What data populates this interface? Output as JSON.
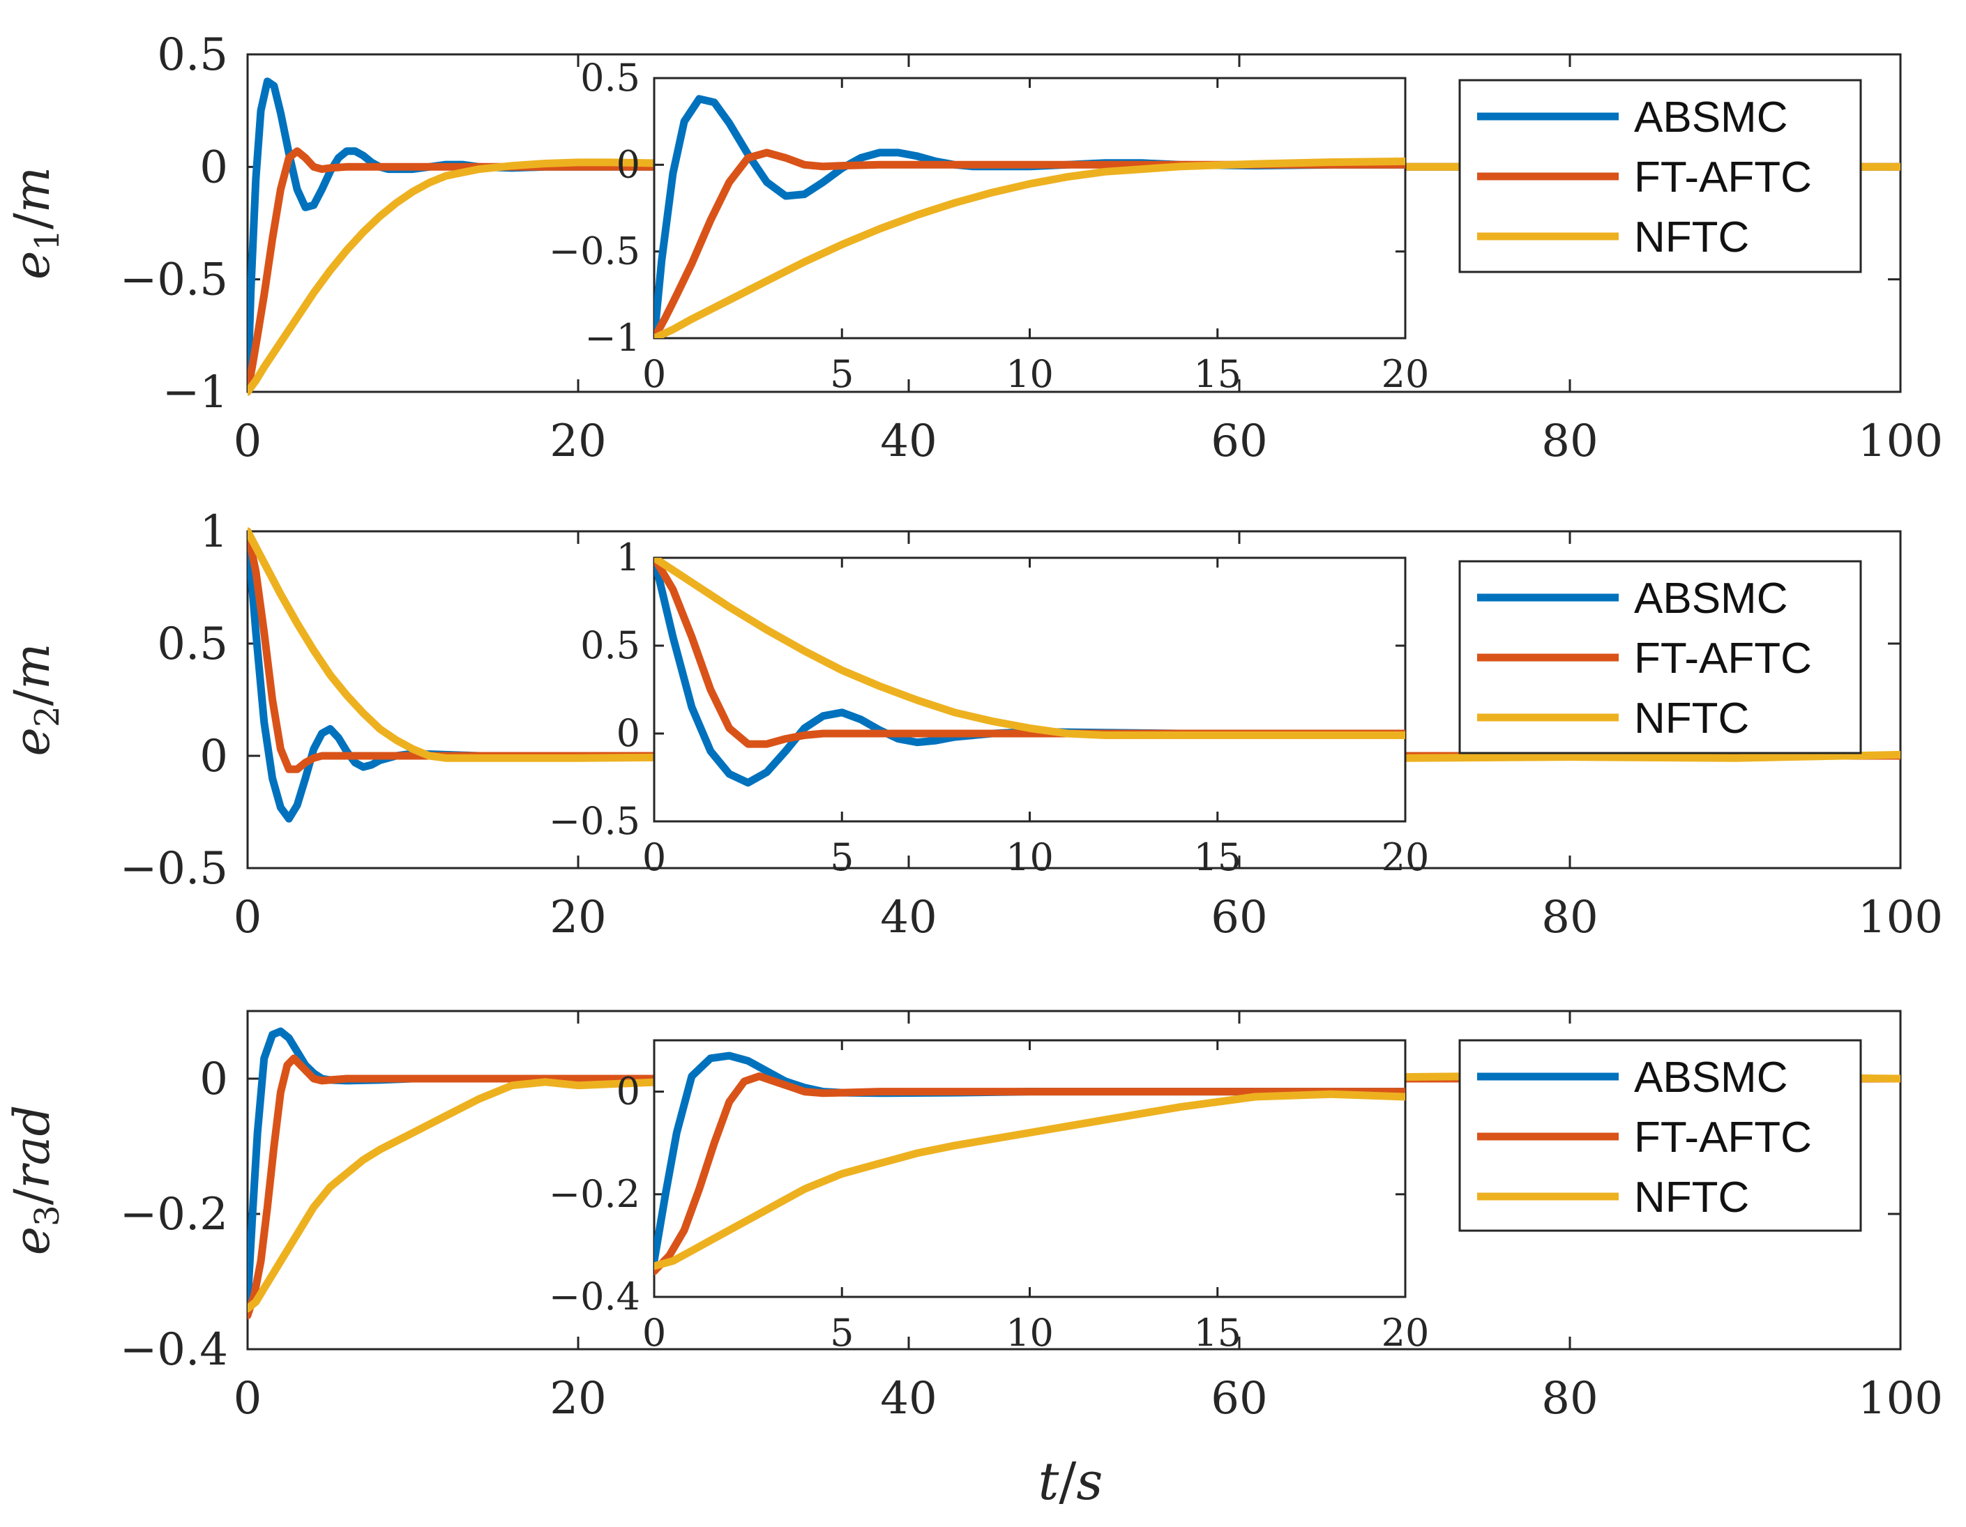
{
  "chart_data": {
    "type": "line",
    "xlabel_var": "t",
    "xlabel_unit": "s",
    "colors": {
      "ABSMC": "#0072BD",
      "FT-AFTC": "#D95319",
      "NFTC": "#EDB120"
    },
    "legend": [
      "ABSMC",
      "FT-AFTC",
      "NFTC"
    ],
    "legend_position": "inset-right",
    "panels": [
      {
        "ylabel_var": "e",
        "ylabel_sub": "1",
        "ylabel_unit": "m",
        "xlim": [
          0,
          100
        ],
        "ylim": [
          -1,
          0.5
        ],
        "xticks": [
          0,
          20,
          40,
          60,
          80,
          100
        ],
        "xtick_labels": [
          "0",
          "20",
          "40",
          "60",
          "80",
          "100"
        ],
        "yticks": [
          -1,
          -0.5,
          0,
          0.5
        ],
        "ytick_labels": [
          "−1",
          "−0.5",
          "0",
          "0.5"
        ],
        "inset": {
          "xlim": [
            0,
            20
          ],
          "ylim": [
            -1,
            0.5
          ],
          "xticks": [
            0,
            5,
            10,
            15,
            20
          ],
          "xtick_labels": [
            "0",
            "5",
            "10",
            "15",
            "20"
          ],
          "yticks": [
            -1,
            -0.5,
            0,
            0.5
          ],
          "ytick_labels": [
            "−1",
            "−0.5",
            "0",
            "0.5"
          ]
        },
        "series": [
          {
            "name": "ABSMC",
            "x": [
              0,
              0.2,
              0.5,
              0.8,
              1.2,
              1.6,
              2.0,
              2.5,
              3.0,
              3.5,
              4.0,
              4.5,
              5.0,
              5.5,
              6.0,
              6.5,
              7.0,
              7.5,
              8.0,
              8.5,
              9.0,
              10,
              11,
              12,
              13,
              14,
              16,
              18,
              20,
              25,
              30,
              40,
              60,
              80,
              100
            ],
            "y": [
              -1.0,
              -0.55,
              -0.05,
              0.25,
              0.38,
              0.36,
              0.24,
              0.06,
              -0.1,
              -0.18,
              -0.17,
              -0.1,
              -0.02,
              0.04,
              0.07,
              0.07,
              0.05,
              0.02,
              0.0,
              -0.01,
              -0.01,
              -0.01,
              0.0,
              0.01,
              0.01,
              0.0,
              -0.005,
              0.0,
              0.0,
              0.0,
              0.0,
              0.0,
              0.0,
              0.0,
              0.0
            ]
          },
          {
            "name": "FT-AFTC",
            "x": [
              0,
              0.3,
              0.6,
              1.0,
              1.5,
              2.0,
              2.5,
              3.0,
              3.5,
              4.0,
              4.5,
              5.0,
              6.0,
              7.0,
              8.0,
              10,
              15,
              20,
              30,
              50,
              70,
              100
            ],
            "y": [
              -1.0,
              -0.88,
              -0.75,
              -0.57,
              -0.32,
              -0.1,
              0.04,
              0.07,
              0.04,
              0.0,
              -0.01,
              -0.005,
              0.0,
              0.0,
              0.0,
              0.0,
              0.0,
              0.0,
              0.0,
              0.0,
              0.0,
              0.0
            ]
          },
          {
            "name": "NFTC",
            "x": [
              0,
              0.5,
              1,
              2,
              3,
              4,
              5,
              6,
              7,
              8,
              9,
              10,
              11,
              12,
              14,
              16,
              18,
              20,
              22,
              26,
              30,
              40,
              60,
              80,
              100
            ],
            "y": [
              -1.0,
              -0.95,
              -0.89,
              -0.78,
              -0.67,
              -0.56,
              -0.46,
              -0.37,
              -0.29,
              -0.22,
              -0.16,
              -0.11,
              -0.07,
              -0.04,
              -0.01,
              0.005,
              0.015,
              0.02,
              0.02,
              0.015,
              0.01,
              0.005,
              0.0,
              0.0,
              0.0
            ]
          }
        ]
      },
      {
        "ylabel_var": "e",
        "ylabel_sub": "2",
        "ylabel_unit": "m",
        "xlim": [
          0,
          100
        ],
        "ylim": [
          -0.5,
          1
        ],
        "xticks": [
          0,
          20,
          40,
          60,
          80,
          100
        ],
        "xtick_labels": [
          "0",
          "20",
          "40",
          "60",
          "80",
          "100"
        ],
        "yticks": [
          -0.5,
          0,
          0.5,
          1
        ],
        "ytick_labels": [
          "−0.5",
          "0",
          "0.5",
          "1"
        ],
        "inset": {
          "xlim": [
            0,
            20
          ],
          "ylim": [
            -0.5,
            1
          ],
          "xticks": [
            0,
            5,
            10,
            15,
            20
          ],
          "xtick_labels": [
            "0",
            "5",
            "10",
            "15",
            "20"
          ],
          "yticks": [
            -0.5,
            0,
            0.5,
            1
          ],
          "ytick_labels": [
            "−0.5",
            "0",
            "0.5",
            "1"
          ]
        },
        "series": [
          {
            "name": "ABSMC",
            "x": [
              0,
              0.5,
              1.0,
              1.5,
              2.0,
              2.5,
              3.0,
              3.5,
              4.0,
              4.5,
              5.0,
              5.5,
              6.0,
              6.5,
              7.0,
              7.5,
              8.0,
              9.0,
              10,
              12,
              14,
              16,
              20,
              30,
              40,
              60,
              70,
              80,
              90,
              100
            ],
            "y": [
              1.0,
              0.55,
              0.15,
              -0.1,
              -0.23,
              -0.28,
              -0.22,
              -0.1,
              0.03,
              0.1,
              0.12,
              0.08,
              0.02,
              -0.03,
              -0.05,
              -0.04,
              -0.02,
              0.0,
              0.01,
              0.005,
              0.0,
              0.0,
              0.0,
              0.0,
              0.0,
              0.0,
              0.0,
              0.0,
              0.0,
              0.0
            ]
          },
          {
            "name": "FT-AFTC",
            "x": [
              0,
              0.5,
              1.0,
              1.5,
              2.0,
              2.5,
              3.0,
              3.5,
              4.0,
              4.5,
              5.0,
              6.0,
              8.0,
              10,
              20,
              40,
              60,
              80,
              100
            ],
            "y": [
              1.0,
              0.82,
              0.55,
              0.25,
              0.03,
              -0.06,
              -0.06,
              -0.03,
              -0.01,
              0.0,
              0.0,
              0.0,
              0.0,
              0.0,
              0.0,
              0.0,
              0.0,
              0.0,
              0.0
            ]
          },
          {
            "name": "NFTC",
            "x": [
              0,
              1,
              2,
              3,
              4,
              5,
              6,
              7,
              8,
              9,
              10,
              11,
              12,
              14,
              16,
              18,
              20,
              30,
              40,
              50,
              60,
              70,
              80,
              90,
              100
            ],
            "y": [
              1.0,
              0.86,
              0.72,
              0.59,
              0.47,
              0.36,
              0.27,
              0.19,
              0.12,
              0.07,
              0.03,
              0.0,
              -0.01,
              -0.01,
              -0.01,
              -0.01,
              -0.01,
              -0.005,
              0.0,
              0.0,
              -0.005,
              -0.01,
              -0.005,
              -0.01,
              0.005
            ]
          }
        ]
      },
      {
        "ylabel_var": "e",
        "ylabel_sub": "3",
        "ylabel_unit": "rad",
        "xlim": [
          0,
          100
        ],
        "ylim": [
          -0.4,
          0.1
        ],
        "xticks": [
          0,
          20,
          40,
          60,
          80,
          100
        ],
        "xtick_labels": [
          "0",
          "20",
          "40",
          "60",
          "80",
          "100"
        ],
        "yticks": [
          -0.4,
          -0.2,
          0
        ],
        "ytick_labels": [
          "−0.4",
          "−0.2",
          "0"
        ],
        "inset": {
          "xlim": [
            0,
            20
          ],
          "ylim": [
            -0.4,
            0.1
          ],
          "xticks": [
            0,
            5,
            10,
            15,
            20
          ],
          "xtick_labels": [
            "0",
            "5",
            "10",
            "15",
            "20"
          ],
          "yticks": [
            -0.4,
            -0.2,
            0
          ],
          "ytick_labels": [
            "−0.4",
            "−0.2",
            "0"
          ]
        },
        "series": [
          {
            "name": "ABSMC",
            "x": [
              0,
              0.3,
              0.6,
              1.0,
              1.5,
              2.0,
              2.5,
              3.0,
              3.5,
              4.0,
              4.5,
              5.0,
              6.0,
              8.0,
              10,
              15,
              20,
              40,
              60,
              80,
              100
            ],
            "y": [
              -0.33,
              -0.2,
              -0.08,
              0.03,
              0.065,
              0.07,
              0.06,
              0.04,
              0.02,
              0.008,
              0.0,
              -0.002,
              -0.003,
              -0.002,
              0.0,
              0.0,
              0.0,
              0.0,
              0.0,
              0.0,
              0.0
            ]
          },
          {
            "name": "FT-AFTC",
            "x": [
              0,
              0.4,
              0.8,
              1.2,
              1.6,
              2.0,
              2.4,
              2.8,
              3.2,
              3.6,
              4.0,
              4.5,
              5.0,
              6.0,
              8.0,
              10,
              20,
              40,
              60,
              80,
              100
            ],
            "y": [
              -0.35,
              -0.32,
              -0.27,
              -0.19,
              -0.1,
              -0.02,
              0.02,
              0.03,
              0.02,
              0.01,
              0.0,
              -0.003,
              -0.002,
              0.0,
              0.0,
              0.0,
              0.0,
              0.0,
              0.0,
              0.0,
              0.0
            ]
          },
          {
            "name": "NFTC",
            "x": [
              0,
              0.5,
              1,
              1.5,
              2,
              3,
              4,
              5,
              6,
              7,
              8,
              10,
              12,
              14,
              16,
              18,
              20,
              25,
              30,
              40,
              60,
              80,
              100
            ],
            "y": [
              -0.34,
              -0.33,
              -0.31,
              -0.29,
              -0.27,
              -0.23,
              -0.19,
              -0.16,
              -0.14,
              -0.12,
              -0.105,
              -0.08,
              -0.055,
              -0.03,
              -0.01,
              -0.005,
              -0.01,
              -0.005,
              0.0,
              0.0,
              0.0,
              0.005,
              0.0
            ]
          }
        ]
      }
    ]
  }
}
